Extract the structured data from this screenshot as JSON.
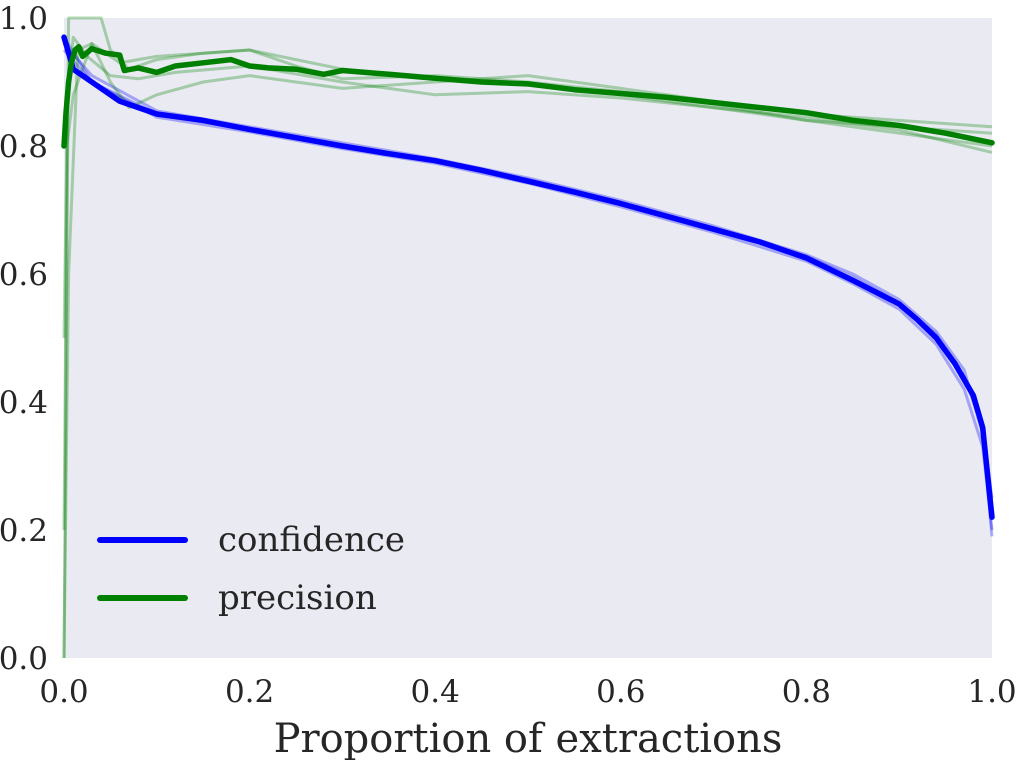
{
  "chart_data": {
    "type": "line",
    "title": "",
    "xlabel": "Proportion of extractions",
    "ylabel": "",
    "xlim": [
      0.0,
      1.0
    ],
    "ylim": [
      0.0,
      1.0
    ],
    "xticks": [
      "0.0",
      "0.2",
      "0.4",
      "0.6",
      "0.8",
      "1.0"
    ],
    "yticks": [
      "0.0",
      "0.2",
      "0.4",
      "0.6",
      "0.8",
      "1.0"
    ],
    "grid": false,
    "background": "#eaeaf2",
    "legend": {
      "placement": "lower-left"
    },
    "series": [
      {
        "name": "confidence",
        "color": "#0000ff",
        "x": [
          0.0,
          0.01,
          0.03,
          0.06,
          0.1,
          0.15,
          0.2,
          0.25,
          0.3,
          0.35,
          0.4,
          0.45,
          0.5,
          0.55,
          0.6,
          0.65,
          0.7,
          0.75,
          0.8,
          0.85,
          0.88,
          0.9,
          0.92,
          0.94,
          0.96,
          0.98,
          0.99,
          1.0
        ],
        "y": [
          0.97,
          0.92,
          0.9,
          0.87,
          0.85,
          0.84,
          0.826,
          0.813,
          0.8,
          0.788,
          0.777,
          0.762,
          0.745,
          0.728,
          0.71,
          0.69,
          0.67,
          0.65,
          0.625,
          0.59,
          0.568,
          0.553,
          0.528,
          0.5,
          0.46,
          0.41,
          0.36,
          0.22
        ],
        "runs": [
          {
            "x": [
              0.0,
              0.03,
              0.1,
              0.2,
              0.3,
              0.4,
              0.5,
              0.6,
              0.7,
              0.8,
              0.85,
              0.9,
              0.94,
              0.97,
              0.99,
              1.0
            ],
            "y": [
              0.96,
              0.91,
              0.855,
              0.83,
              0.805,
              0.78,
              0.75,
              0.715,
              0.675,
              0.63,
              0.6,
              0.56,
              0.51,
              0.45,
              0.35,
              0.19
            ]
          },
          {
            "x": [
              0.0,
              0.03,
              0.1,
              0.2,
              0.3,
              0.4,
              0.5,
              0.6,
              0.7,
              0.8,
              0.85,
              0.9,
              0.94,
              0.97,
              0.99,
              1.0
            ],
            "y": [
              0.97,
              0.9,
              0.845,
              0.822,
              0.796,
              0.773,
              0.742,
              0.705,
              0.665,
              0.62,
              0.585,
              0.545,
              0.49,
              0.42,
              0.33,
              0.2
            ]
          },
          {
            "x": [
              0.0,
              0.03,
              0.1,
              0.2,
              0.3,
              0.4,
              0.5,
              0.6,
              0.7,
              0.8,
              0.85,
              0.9,
              0.94,
              0.97,
              0.99,
              1.0
            ],
            "y": [
              0.95,
              0.9,
              0.85,
              0.825,
              0.8,
              0.778,
              0.748,
              0.712,
              0.672,
              0.628,
              0.595,
              0.555,
              0.505,
              0.44,
              0.36,
              0.25
            ]
          }
        ]
      },
      {
        "name": "precision",
        "color": "#008000",
        "x": [
          0.0,
          0.002,
          0.005,
          0.008,
          0.012,
          0.016,
          0.02,
          0.03,
          0.045,
          0.06,
          0.065,
          0.08,
          0.1,
          0.12,
          0.15,
          0.18,
          0.2,
          0.22,
          0.25,
          0.28,
          0.3,
          0.35,
          0.4,
          0.45,
          0.5,
          0.55,
          0.6,
          0.65,
          0.7,
          0.75,
          0.8,
          0.85,
          0.9,
          0.95,
          1.0
        ],
        "y": [
          0.8,
          0.85,
          0.9,
          0.93,
          0.95,
          0.955,
          0.94,
          0.952,
          0.945,
          0.942,
          0.918,
          0.922,
          0.915,
          0.925,
          0.93,
          0.935,
          0.925,
          0.922,
          0.92,
          0.912,
          0.918,
          0.912,
          0.906,
          0.9,
          0.897,
          0.888,
          0.882,
          0.876,
          0.868,
          0.86,
          0.852,
          0.84,
          0.832,
          0.82,
          0.805
        ],
        "runs": [
          {
            "x": [
              0.0,
              0.005,
              0.01,
              0.02,
              0.04,
              0.05,
              0.07,
              0.1,
              0.15,
              0.2,
              0.25,
              0.3,
              0.4,
              0.5,
              0.6,
              0.7,
              0.8,
              0.9,
              1.0
            ],
            "y": [
              0.0,
              1.0,
              1.0,
              1.0,
              1.0,
              0.95,
              0.92,
              0.935,
              0.945,
              0.95,
              0.935,
              0.92,
              0.905,
              0.895,
              0.88,
              0.86,
              0.84,
              0.83,
              0.82
            ]
          },
          {
            "x": [
              0.0,
              0.003,
              0.01,
              0.03,
              0.06,
              0.1,
              0.15,
              0.2,
              0.25,
              0.3,
              0.4,
              0.5,
              0.6,
              0.7,
              0.8,
              0.9,
              1.0
            ],
            "y": [
              0.5,
              0.8,
              0.88,
              0.96,
              0.93,
              0.94,
              0.945,
              0.95,
              0.925,
              0.905,
              0.91,
              0.9,
              0.885,
              0.865,
              0.84,
              0.82,
              0.8
            ]
          },
          {
            "x": [
              0.0,
              0.005,
              0.015,
              0.03,
              0.05,
              0.07,
              0.1,
              0.15,
              0.2,
              0.3,
              0.4,
              0.5,
              0.6,
              0.7,
              0.8,
              0.9,
              1.0
            ],
            "y": [
              0.0,
              0.6,
              0.95,
              0.96,
              0.9,
              0.86,
              0.88,
              0.9,
              0.91,
              0.89,
              0.9,
              0.91,
              0.89,
              0.87,
              0.85,
              0.84,
              0.83
            ]
          },
          {
            "x": [
              0.0,
              0.004,
              0.01,
              0.025,
              0.05,
              0.08,
              0.12,
              0.2,
              0.3,
              0.4,
              0.5,
              0.6,
              0.7,
              0.8,
              0.9,
              1.0
            ],
            "y": [
              0.2,
              0.9,
              0.97,
              0.94,
              0.91,
              0.905,
              0.915,
              0.925,
              0.9,
              0.88,
              0.885,
              0.875,
              0.86,
              0.845,
              0.825,
              0.79
            ]
          }
        ]
      }
    ]
  }
}
